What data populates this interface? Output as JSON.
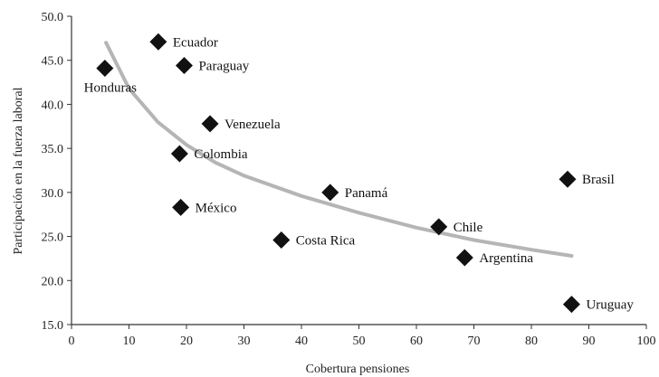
{
  "chart_data": {
    "type": "scatter",
    "xlabel": "Cobertura pensiones",
    "ylabel": "Participación en la fuerza laboral",
    "xlim": [
      0,
      100
    ],
    "ylim": [
      15,
      50
    ],
    "x_ticks": [
      "0",
      "10",
      "20",
      "30",
      "40",
      "50",
      "60",
      "70",
      "80",
      "90",
      "100"
    ],
    "y_ticks": [
      "15.0",
      "20.0",
      "25.0",
      "30.0",
      "35.0",
      "40.0",
      "45.0",
      "50.0"
    ],
    "grid": false,
    "points": [
      {
        "label": "Honduras",
        "x": 5.8,
        "y": 44.1,
        "label_pos": "below"
      },
      {
        "label": "Ecuador",
        "x": 15.1,
        "y": 47.1,
        "label_pos": "right"
      },
      {
        "label": "Paraguay",
        "x": 19.6,
        "y": 44.4,
        "label_pos": "right"
      },
      {
        "label": "Venezuela",
        "x": 24.1,
        "y": 37.8,
        "label_pos": "right"
      },
      {
        "label": "Colombia",
        "x": 18.8,
        "y": 34.4,
        "label_pos": "right"
      },
      {
        "label": "México",
        "x": 19.0,
        "y": 28.3,
        "label_pos": "right"
      },
      {
        "label": "Costa Rica",
        "x": 36.5,
        "y": 24.6,
        "label_pos": "right"
      },
      {
        "label": "Panamá",
        "x": 45.0,
        "y": 30.0,
        "label_pos": "right"
      },
      {
        "label": "Chile",
        "x": 63.9,
        "y": 26.1,
        "label_pos": "right"
      },
      {
        "label": "Argentina",
        "x": 68.4,
        "y": 22.6,
        "label_pos": "right"
      },
      {
        "label": "Brasil",
        "x": 86.3,
        "y": 31.5,
        "label_pos": "right"
      },
      {
        "label": "Uruguay",
        "x": 87.0,
        "y": 17.3,
        "label_pos": "right"
      }
    ],
    "trendline": {
      "x": [
        6,
        10,
        15,
        20,
        25,
        30,
        40,
        50,
        60,
        70,
        80,
        87
      ],
      "y": [
        47.0,
        41.8,
        38.0,
        35.4,
        33.4,
        31.9,
        29.6,
        27.7,
        26.0,
        24.6,
        23.5,
        22.8
      ]
    }
  }
}
